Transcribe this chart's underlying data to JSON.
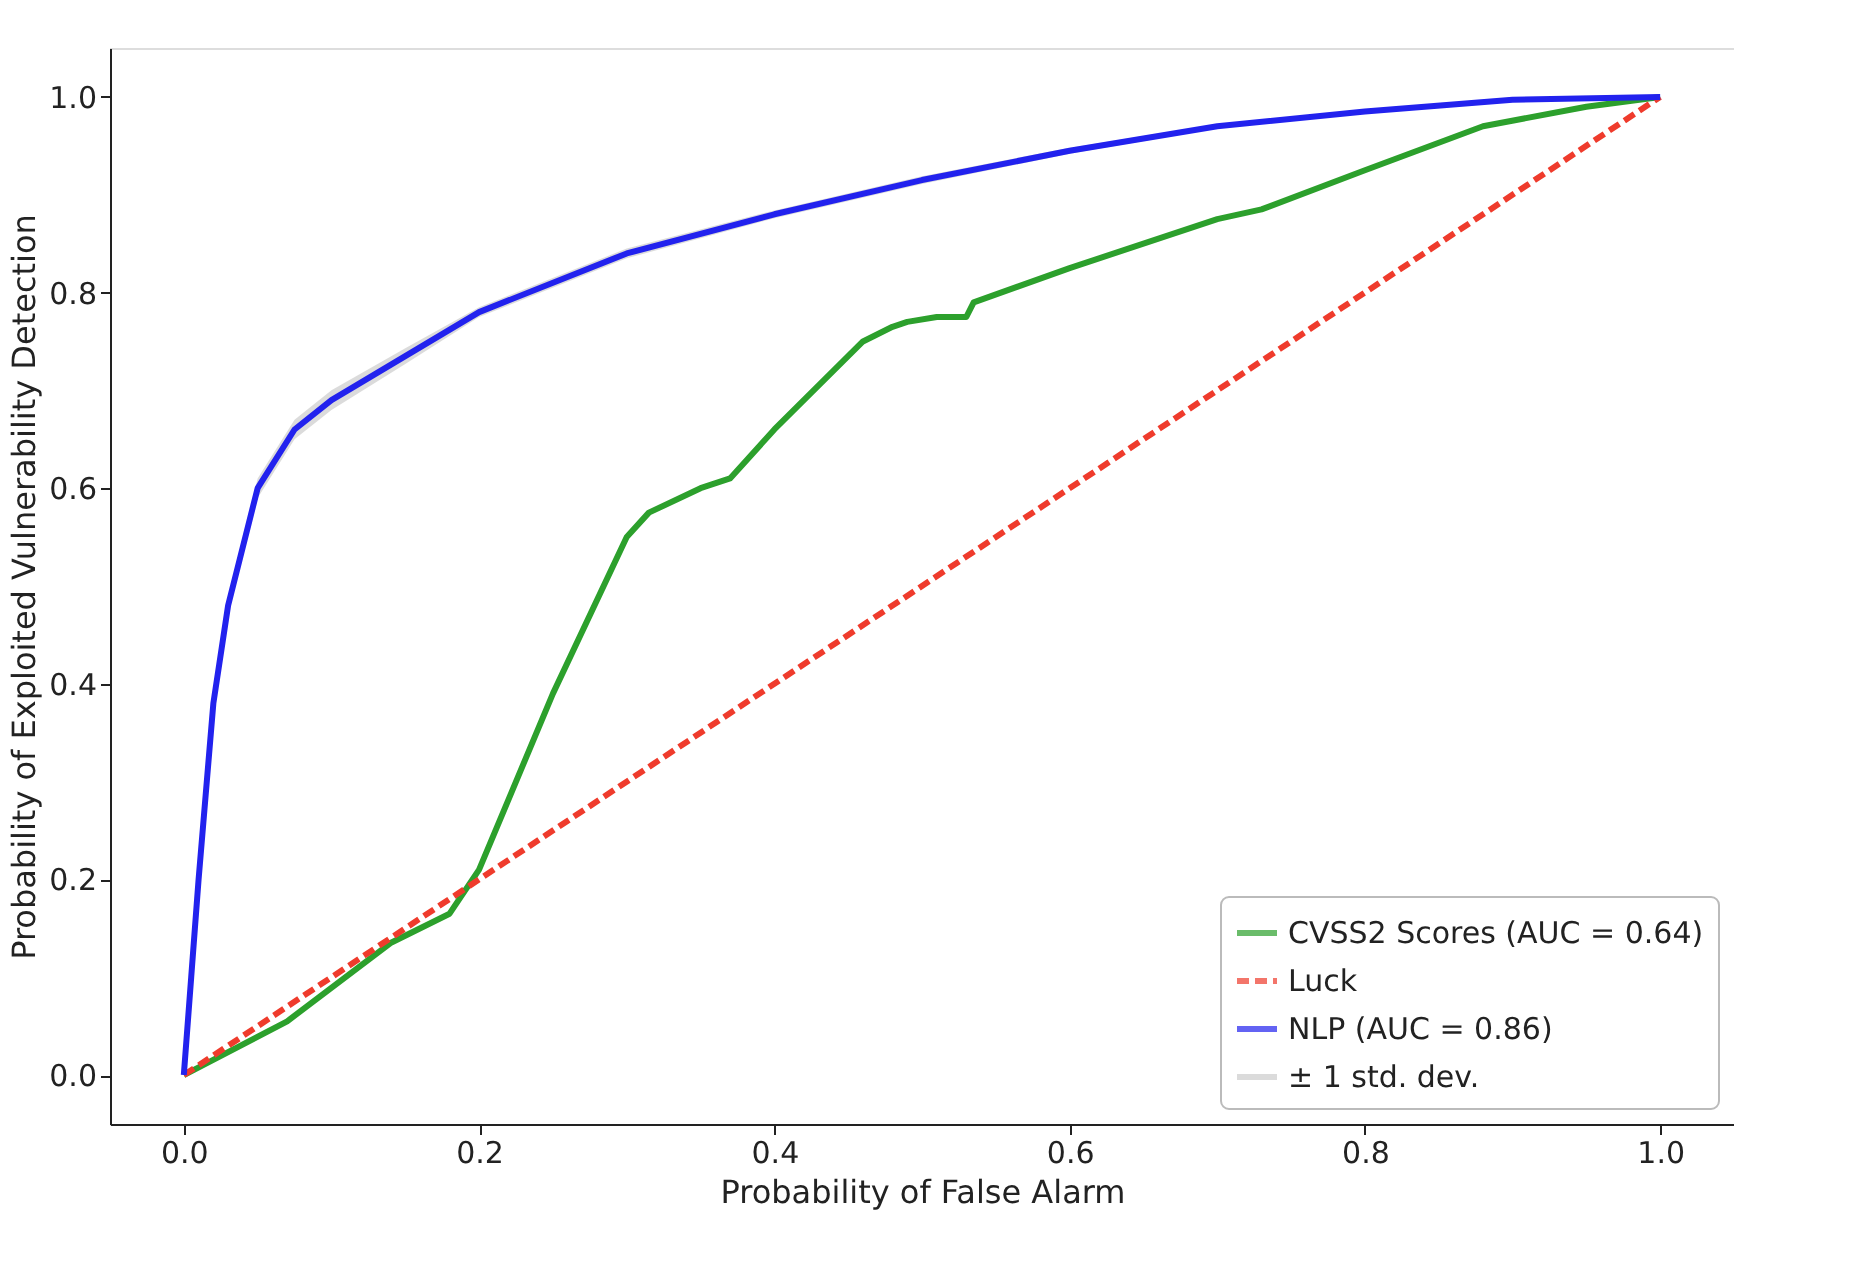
{
  "chart_data": {
    "type": "line",
    "xlabel": "Probability of False Alarm",
    "ylabel": "Probability of Exploited Vulnerability Detection",
    "xlim": [
      -0.05,
      1.05
    ],
    "ylim": [
      -0.05,
      1.05
    ],
    "xticks": [
      {
        "value": 0,
        "label": "0.0"
      },
      {
        "value": 0.2,
        "label": "0.2"
      },
      {
        "value": 0.4,
        "label": "0.4"
      },
      {
        "value": 0.6,
        "label": "0.6"
      },
      {
        "value": 0.8,
        "label": "0.8"
      },
      {
        "value": 1,
        "label": "1.0"
      }
    ],
    "yticks": [
      {
        "value": 0,
        "label": "0.0"
      },
      {
        "value": 0.2,
        "label": "0.2"
      },
      {
        "value": 0.4,
        "label": "0.4"
      },
      {
        "value": 0.6,
        "label": "0.6"
      },
      {
        "value": 0.8,
        "label": "0.8"
      },
      {
        "value": 1,
        "label": "1.0"
      }
    ],
    "grid": false,
    "legend": "bottom right",
    "series": [
      {
        "name": "CVSS2 Scores (AUC = 0.64)",
        "color": "#2ca02c",
        "line_style": "solid",
        "x": [
          0,
          0.07,
          0.14,
          0.18,
          0.2,
          0.25,
          0.3,
          0.315,
          0.35,
          0.37,
          0.4,
          0.46,
          0.48,
          0.49,
          0.51,
          0.53,
          0.535,
          0.6,
          0.7,
          0.73,
          0.8,
          0.88,
          0.95,
          1
        ],
        "values": [
          0,
          0.055,
          0.135,
          0.165,
          0.21,
          0.39,
          0.55,
          0.575,
          0.6,
          0.61,
          0.66,
          0.75,
          0.765,
          0.77,
          0.775,
          0.775,
          0.79,
          0.825,
          0.875,
          0.885,
          0.925,
          0.97,
          0.99,
          1
        ]
      },
      {
        "name": "Luck",
        "color": "#ef3b2c",
        "line_style": "dashed",
        "x": [
          0,
          1
        ],
        "values": [
          0,
          1
        ]
      },
      {
        "name": "NLP (AUC = 0.86)",
        "color": "#2222ee",
        "line_style": "solid",
        "x": [
          0,
          0.005,
          0.01,
          0.02,
          0.03,
          0.05,
          0.075,
          0.1,
          0.15,
          0.2,
          0.3,
          0.4,
          0.5,
          0.6,
          0.7,
          0.8,
          0.9,
          1
        ],
        "values": [
          0,
          0.1,
          0.2,
          0.38,
          0.48,
          0.6,
          0.66,
          0.69,
          0.735,
          0.78,
          0.84,
          0.88,
          0.915,
          0.945,
          0.97,
          0.985,
          0.997,
          1
        ],
        "lower": [
          0,
          0.09,
          0.19,
          0.37,
          0.47,
          0.59,
          0.65,
          0.68,
          0.727,
          0.775,
          0.835,
          0.876,
          0.911,
          0.942,
          0.968,
          0.983,
          0.996,
          1
        ],
        "upper": [
          0,
          0.11,
          0.21,
          0.39,
          0.49,
          0.61,
          0.67,
          0.7,
          0.743,
          0.785,
          0.845,
          0.884,
          0.919,
          0.948,
          0.972,
          0.987,
          0.998,
          1
        ]
      },
      {
        "name": "± 1 std. dev.",
        "type": "area",
        "color": "#cccccc"
      }
    ]
  }
}
